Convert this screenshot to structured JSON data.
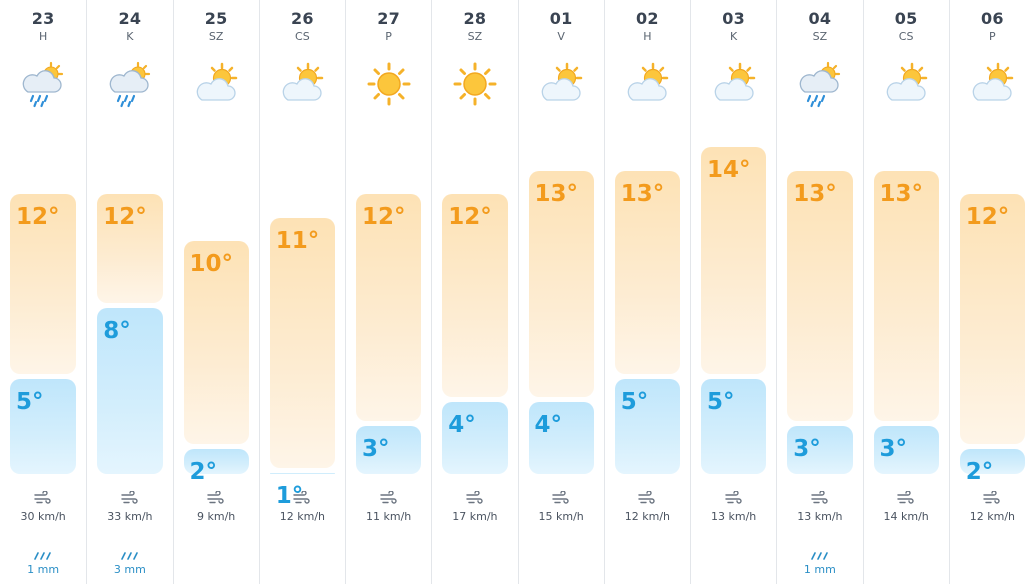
{
  "colors": {
    "max_text": "#f39b1d",
    "min_text": "#1e9cdb",
    "max_bar": "#fde2b5",
    "min_bar": "#bfe6fb",
    "rain_text": "#2b8fc6"
  },
  "days": [
    {
      "date": "23",
      "dow": "H",
      "icon": "rain-cloud-sun-icon",
      "max": "12°",
      "min": "5°",
      "max_c": 12,
      "min_c": 5,
      "wind": "30 km/h",
      "rain": "1 mm"
    },
    {
      "date": "24",
      "dow": "K",
      "icon": "rain-cloud-sun-icon",
      "max": "12°",
      "min": "8°",
      "max_c": 12,
      "min_c": 8,
      "wind": "33 km/h",
      "rain": "3 mm"
    },
    {
      "date": "25",
      "dow": "SZ",
      "icon": "partly-cloudy-icon",
      "max": "10°",
      "min": "2°",
      "max_c": 10,
      "min_c": 2,
      "wind": "9 km/h",
      "rain": ""
    },
    {
      "date": "26",
      "dow": "CS",
      "icon": "partly-cloudy-icon",
      "max": "11°",
      "min": "1°",
      "max_c": 11,
      "min_c": 1,
      "wind": "12 km/h",
      "rain": ""
    },
    {
      "date": "27",
      "dow": "P",
      "icon": "sun-icon",
      "max": "12°",
      "min": "3°",
      "max_c": 12,
      "min_c": 3,
      "wind": "11 km/h",
      "rain": ""
    },
    {
      "date": "28",
      "dow": "SZ",
      "icon": "sun-icon",
      "max": "12°",
      "min": "4°",
      "max_c": 12,
      "min_c": 4,
      "wind": "17 km/h",
      "rain": ""
    },
    {
      "date": "01",
      "dow": "V",
      "icon": "partly-cloudy-icon",
      "max": "13°",
      "min": "4°",
      "max_c": 13,
      "min_c": 4,
      "wind": "15 km/h",
      "rain": ""
    },
    {
      "date": "02",
      "dow": "H",
      "icon": "partly-cloudy-icon",
      "max": "13°",
      "min": "5°",
      "max_c": 13,
      "min_c": 5,
      "wind": "12 km/h",
      "rain": ""
    },
    {
      "date": "03",
      "dow": "K",
      "icon": "partly-cloudy-icon",
      "max": "14°",
      "min": "5°",
      "max_c": 14,
      "min_c": 5,
      "wind": "13 km/h",
      "rain": ""
    },
    {
      "date": "04",
      "dow": "SZ",
      "icon": "rain-cloud-sun-icon",
      "max": "13°",
      "min": "3°",
      "max_c": 13,
      "min_c": 3,
      "wind": "13 km/h",
      "rain": "1 mm"
    },
    {
      "date": "05",
      "dow": "CS",
      "icon": "partly-cloudy-icon",
      "max": "13°",
      "min": "3°",
      "max_c": 13,
      "min_c": 3,
      "wind": "14 km/h",
      "rain": ""
    },
    {
      "date": "06",
      "dow": "P",
      "icon": "partly-cloudy-icon",
      "max": "12°",
      "min": "2°",
      "max_c": 12,
      "min_c": 2,
      "wind": "12 km/h",
      "rain": ""
    }
  ]
}
